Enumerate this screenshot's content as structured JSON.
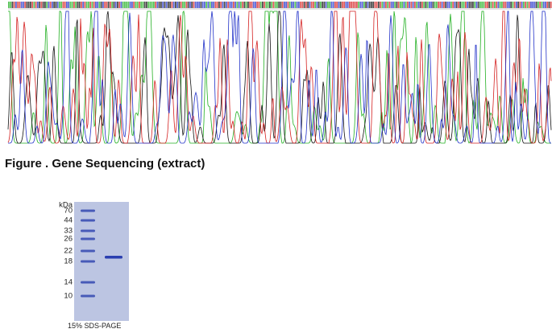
{
  "figure": {
    "caption": "Figure . Gene Sequencing (extract)"
  },
  "gel": {
    "unit": "kDa",
    "markers": [
      "70",
      "44",
      "33",
      "26",
      "22",
      "18",
      "14",
      "10"
    ],
    "caption": "15% SDS-PAGE"
  }
}
